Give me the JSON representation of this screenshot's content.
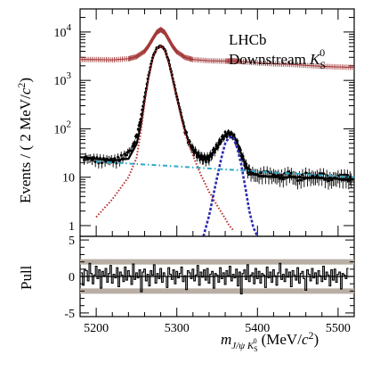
{
  "chart_data": [
    {
      "type": "line",
      "panel": "main",
      "ylabel": "Events / ( 2 MeV/c²)",
      "ylabel_parts": {
        "text": "Events / ( 2 MeV/",
        "var": "c",
        "sup": "2",
        "close": ")"
      },
      "yscale": "log",
      "ylim": [
        0.6,
        30000
      ],
      "xlim": [
        5180,
        5520
      ],
      "y_ticks": [
        {
          "value": 10000,
          "base": "10",
          "exp": "4"
        },
        {
          "value": 1000,
          "base": "10",
          "exp": "3"
        },
        {
          "value": 100,
          "base": "10",
          "exp": "2"
        },
        {
          "value": 10,
          "base": "10",
          "exp": ""
        },
        {
          "value": 1,
          "base": "1",
          "exp": ""
        }
      ],
      "annotations": {
        "experiment": "LHCb",
        "sample_text": "Downstream ",
        "sample_var": "K",
        "sample_sub": "S",
        "sample_sup": "0"
      },
      "series": [
        {
          "style": "crosses",
          "color": "#a33a3a",
          "x": [
            5180,
            5200,
            5220,
            5240,
            5250,
            5260,
            5265,
            5270,
            5275,
            5280,
            5285,
            5290,
            5295,
            5300,
            5310,
            5320,
            5340,
            5360,
            5370,
            5380,
            5400,
            5420,
            5440,
            5460,
            5480,
            5500,
            5520
          ],
          "y": [
            2700,
            2700,
            2650,
            2800,
            3100,
            4000,
            5200,
            7200,
            9800,
            11200,
            9800,
            7000,
            5000,
            3900,
            3000,
            2700,
            2550,
            2500,
            2550,
            2450,
            2300,
            2200,
            2150,
            2050,
            1950,
            1900,
            1850
          ]
        },
        {
          "style": "data-points",
          "color": "#000000",
          "x": [
            5185,
            5195,
            5205,
            5215,
            5225,
            5235,
            5245,
            5250,
            5255,
            5260,
            5265,
            5270,
            5275,
            5280,
            5285,
            5290,
            5295,
            5300,
            5305,
            5310,
            5315,
            5320,
            5325,
            5330,
            5335,
            5340,
            5345,
            5350,
            5355,
            5360,
            5365,
            5370,
            5375,
            5380,
            5385,
            5390,
            5400,
            5410,
            5420,
            5430,
            5440,
            5450,
            5460,
            5470,
            5480,
            5490,
            5500,
            5510,
            5518
          ],
          "y": [
            25,
            24,
            22,
            23,
            22,
            28,
            40,
            70,
            160,
            450,
            1300,
            3000,
            4600,
            5200,
            4400,
            2500,
            1100,
            460,
            210,
            95,
            52,
            38,
            30,
            26,
            24,
            25,
            33,
            44,
            60,
            76,
            80,
            72,
            50,
            30,
            18,
            13,
            11,
            12,
            11,
            10,
            12,
            9,
            11,
            10,
            11,
            9,
            10,
            10,
            9
          ]
        },
        {
          "name": "total-fit",
          "style": "solid",
          "color": "#000000",
          "x": [
            5180,
            5200,
            5220,
            5240,
            5250,
            5255,
            5260,
            5265,
            5270,
            5275,
            5280,
            5285,
            5290,
            5295,
            5300,
            5305,
            5310,
            5315,
            5320,
            5330,
            5340,
            5350,
            5355,
            5360,
            5365,
            5370,
            5375,
            5380,
            5385,
            5390,
            5400,
            5420,
            5450,
            5480,
            5520
          ],
          "y": [
            26,
            24,
            22,
            24,
            48,
            110,
            400,
            1200,
            2900,
            4600,
            5200,
            4300,
            2400,
            1050,
            460,
            200,
            95,
            52,
            36,
            26,
            26,
            40,
            58,
            75,
            82,
            75,
            52,
            30,
            18,
            13,
            11,
            10,
            10,
            9.5,
            9
          ]
        },
        {
          "name": "Bd-signal",
          "style": "dotted",
          "color": "#b52a2a",
          "x": [
            5200,
            5220,
            5240,
            5250,
            5255,
            5260,
            5265,
            5270,
            5275,
            5280,
            5285,
            5290,
            5295,
            5300,
            5310,
            5320,
            5330,
            5340,
            5350,
            5360,
            5365,
            5370
          ],
          "y": [
            1.5,
            3.5,
            10,
            25,
            80,
            330,
            1150,
            2850,
            4550,
            5150,
            4250,
            2350,
            1000,
            420,
            80,
            28,
            11,
            5,
            2.6,
            1.4,
            1.0,
            0.8
          ]
        },
        {
          "name": "Bs-signal",
          "style": "dashed",
          "color": "#2a2ab5",
          "x": [
            5333,
            5340,
            5345,
            5350,
            5355,
            5360,
            5365,
            5370,
            5375,
            5380,
            5385,
            5390,
            5395,
            5400
          ],
          "y": [
            0.6,
            1.6,
            4,
            10,
            24,
            50,
            68,
            66,
            40,
            18,
            6,
            2,
            0.9,
            0.6
          ]
        },
        {
          "name": "background",
          "style": "dash-dot",
          "color": "#2aa9c9",
          "x": [
            5200,
            5280,
            5360,
            5440,
            5520
          ],
          "y": [
            21,
            17.5,
            14.5,
            12,
            10
          ]
        }
      ]
    },
    {
      "type": "bar",
      "panel": "pull",
      "ylabel": "Pull",
      "ylim": [
        -5.5,
        5.5
      ],
      "xlim": [
        5180,
        5520
      ],
      "xlabel_parts": {
        "var": "m",
        "sub1": "J/ψ ",
        "sub2": "K",
        "sub3": "S",
        "sup3": "0",
        "unit": "(MeV/",
        "unitvar": "c",
        "unitsup": "2",
        "close": ")"
      },
      "x_ticks": [
        "5200",
        "5300",
        "5400",
        "5500"
      ],
      "y_ticks": [
        "5",
        "0",
        "-5"
      ],
      "band_lines": [
        -2,
        2
      ],
      "bin_width": 2,
      "x_start": 5181,
      "values": [
        0.5,
        -1.2,
        1.0,
        0.8,
        -0.6,
        1.8,
        0.4,
        -1.0,
        0.2,
        1.4,
        -0.3,
        0.9,
        -1.6,
        0.7,
        0.1,
        1.1,
        -0.8,
        0.4,
        1.5,
        -0.9,
        0.3,
        -0.2,
        1.2,
        -1.4,
        0.6,
        0.2,
        -0.7,
        1.3,
        -0.5,
        0.8,
        0.1,
        -1.1,
        1.7,
        -0.4,
        0.5,
        -0.2,
        0.9,
        -2.1,
        0.6,
        1.0,
        -0.6,
        0.3,
        -1.3,
        0.8,
        0.2,
        1.6,
        -0.9,
        0.4,
        -0.3,
        1.1,
        -0.8,
        0.5,
        0.0,
        -1.5,
        1.2,
        0.3,
        -0.4,
        0.9,
        -1.0,
        0.7,
        -0.2,
        0.4,
        1.3,
        -0.7,
        0.1,
        -1.8,
        0.8,
        0.5,
        -0.3,
        1.0,
        -0.6,
        0.2,
        1.5,
        -1.2,
        0.6,
        -0.1,
        0.9,
        -0.5,
        1.1,
        -0.9,
        0.3,
        0.7,
        -1.6,
        0.4,
        0.2,
        -0.8,
        1.2,
        -0.3,
        0.5,
        -1.1,
        0.8,
        0.1,
        1.4,
        -0.6,
        0.3,
        -0.2,
        1.0,
        -1.3,
        0.6,
        -2.4,
        0.4,
        0.9,
        -0.4,
        1.6,
        -0.7,
        0.2,
        0.5,
        -1.0,
        1.1,
        -0.3,
        0.7,
        -0.9,
        0.4,
        0.2,
        -1.5,
        1.3,
        -0.2,
        0.6,
        -0.8,
        0.9,
        0.1,
        -1.2,
        0.5,
        1.8,
        -0.4,
        0.3,
        -0.7,
        1.0,
        -0.1,
        0.6,
        -1.4,
        0.8,
        0.2,
        -0.5,
        1.2,
        -0.9,
        0.4,
        0.7,
        -0.3,
        -1.9,
        0.9,
        0.3,
        -0.6,
        1.1,
        -0.2,
        0.5,
        -1.0,
        0.8,
        0.1,
        -0.7,
        1.4,
        -0.4,
        0.6,
        0.2,
        -1.3,
        0.9,
        -0.5,
        1.0,
        -0.8,
        0.3,
        0.6,
        -1.7,
        0.4,
        0.2,
        -0.3,
        1.1
      ]
    }
  ]
}
